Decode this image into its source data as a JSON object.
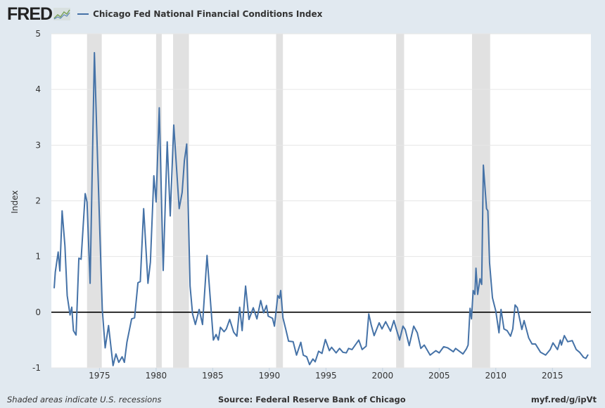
{
  "header": {
    "logo_text": "FRED",
    "series_title": "Chicago Fed National Financial Conditions Index"
  },
  "footer": {
    "recession_note": "Shaded areas indicate U.S. recessions",
    "source": "Source: Federal Reserve Bank of Chicago",
    "short_url": "myf.red/g/ipVt"
  },
  "colors": {
    "line": "#4572a7",
    "recession": "#e1e1e1",
    "background": "#e1e9f0",
    "zero_line": "#000000"
  },
  "chart_data": {
    "type": "line",
    "title": "Chicago Fed National Financial Conditions Index",
    "xlabel": "",
    "ylabel": "Index",
    "xlim": [
      1970.75,
      2018.4
    ],
    "ylim": [
      -1,
      5
    ],
    "grid": true,
    "x_ticks": [
      1975,
      1980,
      1985,
      1990,
      1995,
      2000,
      2005,
      2010,
      2015
    ],
    "y_ticks": [
      -1,
      0,
      1,
      2,
      3,
      4,
      5
    ],
    "recessions": [
      [
        1973.9,
        1975.2
      ],
      [
        1980.0,
        1980.5
      ],
      [
        1981.5,
        1982.9
      ],
      [
        1990.6,
        1991.2
      ],
      [
        2001.2,
        2001.9
      ],
      [
        2007.9,
        2009.5
      ]
    ],
    "series": [
      {
        "name": "Chicago Fed National Financial Conditions Index",
        "points": [
          [
            1971.0,
            0.43
          ],
          [
            1971.1,
            0.72
          ],
          [
            1971.35,
            1.08
          ],
          [
            1971.5,
            0.74
          ],
          [
            1971.7,
            1.82
          ],
          [
            1971.95,
            1.19
          ],
          [
            1972.15,
            0.3
          ],
          [
            1972.4,
            -0.05
          ],
          [
            1972.55,
            0.09
          ],
          [
            1972.7,
            -0.33
          ],
          [
            1972.93,
            -0.41
          ],
          [
            1973.18,
            0.97
          ],
          [
            1973.38,
            0.95
          ],
          [
            1973.74,
            2.13
          ],
          [
            1973.9,
            1.98
          ],
          [
            1974.17,
            0.52
          ],
          [
            1974.55,
            4.66
          ],
          [
            1974.83,
            2.74
          ],
          [
            1975.25,
            0.05
          ],
          [
            1975.5,
            -0.64
          ],
          [
            1975.8,
            -0.24
          ],
          [
            1976.2,
            -0.96
          ],
          [
            1976.45,
            -0.75
          ],
          [
            1976.7,
            -0.9
          ],
          [
            1977.0,
            -0.8
          ],
          [
            1977.2,
            -0.9
          ],
          [
            1977.42,
            -0.54
          ],
          [
            1977.84,
            -0.12
          ],
          [
            1978.1,
            -0.1
          ],
          [
            1978.4,
            0.53
          ],
          [
            1978.6,
            0.55
          ],
          [
            1978.9,
            1.86
          ],
          [
            1979.28,
            0.52
          ],
          [
            1979.5,
            0.9
          ],
          [
            1979.8,
            2.45
          ],
          [
            1980.0,
            1.98
          ],
          [
            1980.28,
            3.67
          ],
          [
            1980.63,
            0.75
          ],
          [
            1980.98,
            3.06
          ],
          [
            1981.25,
            1.73
          ],
          [
            1981.56,
            3.36
          ],
          [
            1982.04,
            1.86
          ],
          [
            1982.3,
            2.15
          ],
          [
            1982.5,
            2.72
          ],
          [
            1982.7,
            3.02
          ],
          [
            1983.0,
            0.47
          ],
          [
            1983.22,
            -0.03
          ],
          [
            1983.47,
            -0.22
          ],
          [
            1983.8,
            0.05
          ],
          [
            1984.1,
            -0.22
          ],
          [
            1984.5,
            1.02
          ],
          [
            1985.06,
            -0.5
          ],
          [
            1985.3,
            -0.4
          ],
          [
            1985.5,
            -0.5
          ],
          [
            1985.68,
            -0.27
          ],
          [
            1986.0,
            -0.35
          ],
          [
            1986.2,
            -0.3
          ],
          [
            1986.5,
            -0.13
          ],
          [
            1986.85,
            -0.36
          ],
          [
            1987.13,
            -0.43
          ],
          [
            1987.38,
            0.09
          ],
          [
            1987.6,
            -0.33
          ],
          [
            1987.9,
            0.47
          ],
          [
            1988.2,
            -0.13
          ],
          [
            1988.58,
            0.08
          ],
          [
            1988.9,
            -0.12
          ],
          [
            1989.24,
            0.21
          ],
          [
            1989.5,
            -0.01
          ],
          [
            1989.75,
            0.12
          ],
          [
            1989.9,
            -0.07
          ],
          [
            1990.28,
            -0.11
          ],
          [
            1990.45,
            -0.25
          ],
          [
            1990.75,
            0.3
          ],
          [
            1990.9,
            0.25
          ],
          [
            1991.0,
            0.39
          ],
          [
            1991.2,
            -0.1
          ],
          [
            1991.48,
            -0.33
          ],
          [
            1991.7,
            -0.52
          ],
          [
            1992.1,
            -0.53
          ],
          [
            1992.4,
            -0.77
          ],
          [
            1992.78,
            -0.54
          ],
          [
            1993.0,
            -0.77
          ],
          [
            1993.3,
            -0.8
          ],
          [
            1993.55,
            -0.94
          ],
          [
            1993.85,
            -0.84
          ],
          [
            1994.05,
            -0.89
          ],
          [
            1994.35,
            -0.7
          ],
          [
            1994.65,
            -0.74
          ],
          [
            1994.95,
            -0.49
          ],
          [
            1995.3,
            -0.69
          ],
          [
            1995.5,
            -0.63
          ],
          [
            1995.9,
            -0.73
          ],
          [
            1996.2,
            -0.65
          ],
          [
            1996.5,
            -0.72
          ],
          [
            1996.8,
            -0.73
          ],
          [
            1997.0,
            -0.65
          ],
          [
            1997.3,
            -0.67
          ],
          [
            1997.9,
            -0.5
          ],
          [
            1998.2,
            -0.67
          ],
          [
            1998.55,
            -0.61
          ],
          [
            1998.78,
            -0.03
          ],
          [
            1999.0,
            -0.23
          ],
          [
            1999.25,
            -0.42
          ],
          [
            1999.7,
            -0.19
          ],
          [
            1999.95,
            -0.3
          ],
          [
            2000.27,
            -0.17
          ],
          [
            2000.7,
            -0.34
          ],
          [
            2001.0,
            -0.15
          ],
          [
            2001.2,
            -0.29
          ],
          [
            2001.5,
            -0.5
          ],
          [
            2001.8,
            -0.25
          ],
          [
            2002.0,
            -0.31
          ],
          [
            2002.35,
            -0.6
          ],
          [
            2002.75,
            -0.25
          ],
          [
            2003.07,
            -0.37
          ],
          [
            2003.38,
            -0.65
          ],
          [
            2003.68,
            -0.59
          ],
          [
            2004.2,
            -0.77
          ],
          [
            2004.7,
            -0.69
          ],
          [
            2005.0,
            -0.73
          ],
          [
            2005.4,
            -0.62
          ],
          [
            2005.75,
            -0.64
          ],
          [
            2006.25,
            -0.71
          ],
          [
            2006.45,
            -0.65
          ],
          [
            2007.1,
            -0.75
          ],
          [
            2007.4,
            -0.66
          ],
          [
            2007.55,
            -0.59
          ],
          [
            2007.73,
            0.07
          ],
          [
            2007.85,
            -0.12
          ],
          [
            2008.0,
            0.39
          ],
          [
            2008.15,
            0.32
          ],
          [
            2008.25,
            0.79
          ],
          [
            2008.4,
            0.32
          ],
          [
            2008.6,
            0.6
          ],
          [
            2008.75,
            0.5
          ],
          [
            2008.9,
            2.64
          ],
          [
            2009.18,
            1.86
          ],
          [
            2009.3,
            1.82
          ],
          [
            2009.45,
            0.89
          ],
          [
            2009.7,
            0.26
          ],
          [
            2010.0,
            0.02
          ],
          [
            2010.28,
            -0.37
          ],
          [
            2010.46,
            0.05
          ],
          [
            2010.72,
            -0.3
          ],
          [
            2011.0,
            -0.33
          ],
          [
            2011.3,
            -0.43
          ],
          [
            2011.5,
            -0.3
          ],
          [
            2011.7,
            0.13
          ],
          [
            2011.9,
            0.08
          ],
          [
            2012.3,
            -0.31
          ],
          [
            2012.5,
            -0.15
          ],
          [
            2012.9,
            -0.46
          ],
          [
            2013.2,
            -0.57
          ],
          [
            2013.5,
            -0.57
          ],
          [
            2013.95,
            -0.72
          ],
          [
            2014.4,
            -0.77
          ],
          [
            2014.8,
            -0.67
          ],
          [
            2015.05,
            -0.55
          ],
          [
            2015.45,
            -0.67
          ],
          [
            2015.7,
            -0.5
          ],
          [
            2015.8,
            -0.59
          ],
          [
            2016.05,
            -0.42
          ],
          [
            2016.35,
            -0.53
          ],
          [
            2016.75,
            -0.51
          ],
          [
            2017.1,
            -0.67
          ],
          [
            2017.4,
            -0.72
          ],
          [
            2017.75,
            -0.81
          ],
          [
            2017.95,
            -0.83
          ],
          [
            2018.15,
            -0.76
          ]
        ]
      }
    ]
  }
}
